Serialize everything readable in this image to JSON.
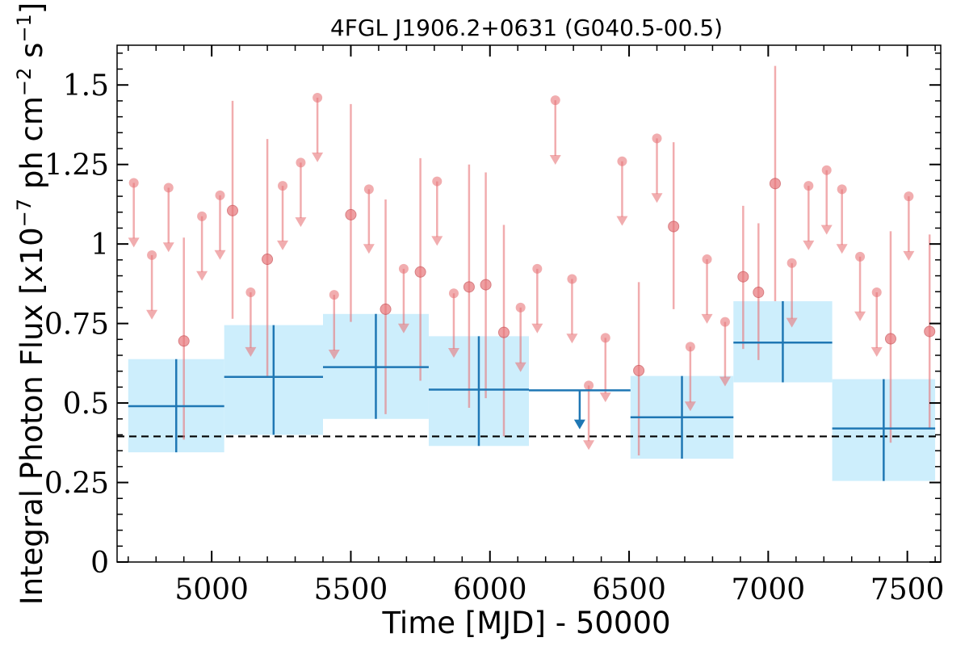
{
  "chart_data": {
    "type": "scatter",
    "title": "4FGL J1906.2+0631 (G040.5-00.5)",
    "xlabel": "Time [MJD] - 50000",
    "ylabel": "Integral Photon Flux [x10",
    "ylabel_exp1": "−7",
    "ylabel_mid": " ph cm",
    "ylabel_exp2": "−2",
    "ylabel_mid2": " s",
    "ylabel_exp3": "−1",
    "ylabel_end": "]",
    "xlim": [
      4660,
      7620
    ],
    "ylim": [
      0,
      1.625
    ],
    "xticks": [
      5000,
      5500,
      6000,
      6500,
      7000,
      7500
    ],
    "xtick_labels": [
      "5000",
      "5500",
      "6000",
      "6500",
      "7000",
      "7500"
    ],
    "yticks": [
      0,
      0.25,
      0.5,
      0.75,
      1,
      1.25,
      1.5
    ],
    "ytick_labels": [
      "0",
      "0.25",
      "0.5",
      "0.75",
      "1",
      "1.25",
      "1.5"
    ],
    "reference_line": 0.395,
    "colors": {
      "short_bin": "#e8767a",
      "long_bin": "#1f77b4",
      "long_band": "#cdeefc",
      "reference": "#000000"
    },
    "series": [
      {
        "kind": "short-bins",
        "detections": [
          {
            "x": 4900,
            "y": 0.695,
            "lo": 0.385,
            "hi": 1.02
          },
          {
            "x": 5075,
            "y": 1.105,
            "lo": 0.765,
            "hi": 1.45
          },
          {
            "x": 5200,
            "y": 0.952,
            "lo": 0.58,
            "hi": 1.33
          },
          {
            "x": 5500,
            "y": 1.092,
            "lo": 0.755,
            "hi": 1.44
          },
          {
            "x": 5625,
            "y": 0.795,
            "lo": 0.465,
            "hi": 1.14
          },
          {
            "x": 5750,
            "y": 0.912,
            "lo": 0.57,
            "hi": 1.27
          },
          {
            "x": 5925,
            "y": 0.865,
            "lo": 0.485,
            "hi": 1.25
          },
          {
            "x": 5985,
            "y": 0.872,
            "lo": 0.515,
            "hi": 1.225
          },
          {
            "x": 6050,
            "y": 0.722,
            "lo": 0.395,
            "hi": 1.06
          },
          {
            "x": 6535,
            "y": 0.602,
            "lo": 0.335,
            "hi": 0.88
          },
          {
            "x": 6660,
            "y": 1.055,
            "lo": 0.795,
            "hi": 1.32
          },
          {
            "x": 6910,
            "y": 0.897,
            "lo": 0.67,
            "hi": 1.12
          },
          {
            "x": 6965,
            "y": 0.848,
            "lo": 0.635,
            "hi": 1.065
          },
          {
            "x": 7025,
            "y": 1.19,
            "lo": 0.82,
            "hi": 1.56
          },
          {
            "x": 7440,
            "y": 0.702,
            "lo": 0.375,
            "hi": 1.04
          },
          {
            "x": 7580,
            "y": 0.725,
            "lo": 0.42,
            "hi": 1.03
          }
        ],
        "upper_limits": [
          {
            "x": 4720,
            "y": 1.192
          },
          {
            "x": 4785,
            "y": 0.965
          },
          {
            "x": 4845,
            "y": 1.177
          },
          {
            "x": 4965,
            "y": 1.087
          },
          {
            "x": 5030,
            "y": 1.153
          },
          {
            "x": 5140,
            "y": 0.848
          },
          {
            "x": 5255,
            "y": 1.183
          },
          {
            "x": 5320,
            "y": 1.256
          },
          {
            "x": 5380,
            "y": 1.46
          },
          {
            "x": 5440,
            "y": 0.84
          },
          {
            "x": 5565,
            "y": 1.172
          },
          {
            "x": 5690,
            "y": 0.922
          },
          {
            "x": 5810,
            "y": 1.197
          },
          {
            "x": 5870,
            "y": 0.845
          },
          {
            "x": 6110,
            "y": 0.8
          },
          {
            "x": 6170,
            "y": 0.922
          },
          {
            "x": 6235,
            "y": 1.452
          },
          {
            "x": 6295,
            "y": 0.89
          },
          {
            "x": 6355,
            "y": 0.555
          },
          {
            "x": 6415,
            "y": 0.705
          },
          {
            "x": 6475,
            "y": 1.26
          },
          {
            "x": 6600,
            "y": 1.332
          },
          {
            "x": 6720,
            "y": 0.677
          },
          {
            "x": 6780,
            "y": 0.952
          },
          {
            "x": 6845,
            "y": 0.755
          },
          {
            "x": 7085,
            "y": 0.94
          },
          {
            "x": 7145,
            "y": 1.183
          },
          {
            "x": 7210,
            "y": 1.232
          },
          {
            "x": 7265,
            "y": 1.172
          },
          {
            "x": 7330,
            "y": 0.96
          },
          {
            "x": 7390,
            "y": 0.848
          },
          {
            "x": 7505,
            "y": 1.15
          }
        ]
      },
      {
        "kind": "long-bins",
        "detections": [
          {
            "x0": 4700,
            "x1": 5045,
            "y": 0.49,
            "lo": 0.345,
            "hi": 0.638
          },
          {
            "x0": 5045,
            "x1": 5400,
            "y": 0.582,
            "lo": 0.4,
            "hi": 0.745
          },
          {
            "x0": 5400,
            "x1": 5780,
            "y": 0.613,
            "lo": 0.45,
            "hi": 0.78
          },
          {
            "x0": 5780,
            "x1": 6140,
            "y": 0.542,
            "lo": 0.365,
            "hi": 0.71
          },
          {
            "x0": 6505,
            "x1": 6875,
            "y": 0.455,
            "lo": 0.325,
            "hi": 0.585
          },
          {
            "x0": 6875,
            "x1": 7230,
            "y": 0.69,
            "lo": 0.565,
            "hi": 0.82
          },
          {
            "x0": 7230,
            "x1": 7600,
            "y": 0.42,
            "lo": 0.255,
            "hi": 0.575
          }
        ],
        "upper_limits": [
          {
            "x0": 6140,
            "x1": 6505,
            "y": 0.54
          }
        ]
      }
    ]
  }
}
